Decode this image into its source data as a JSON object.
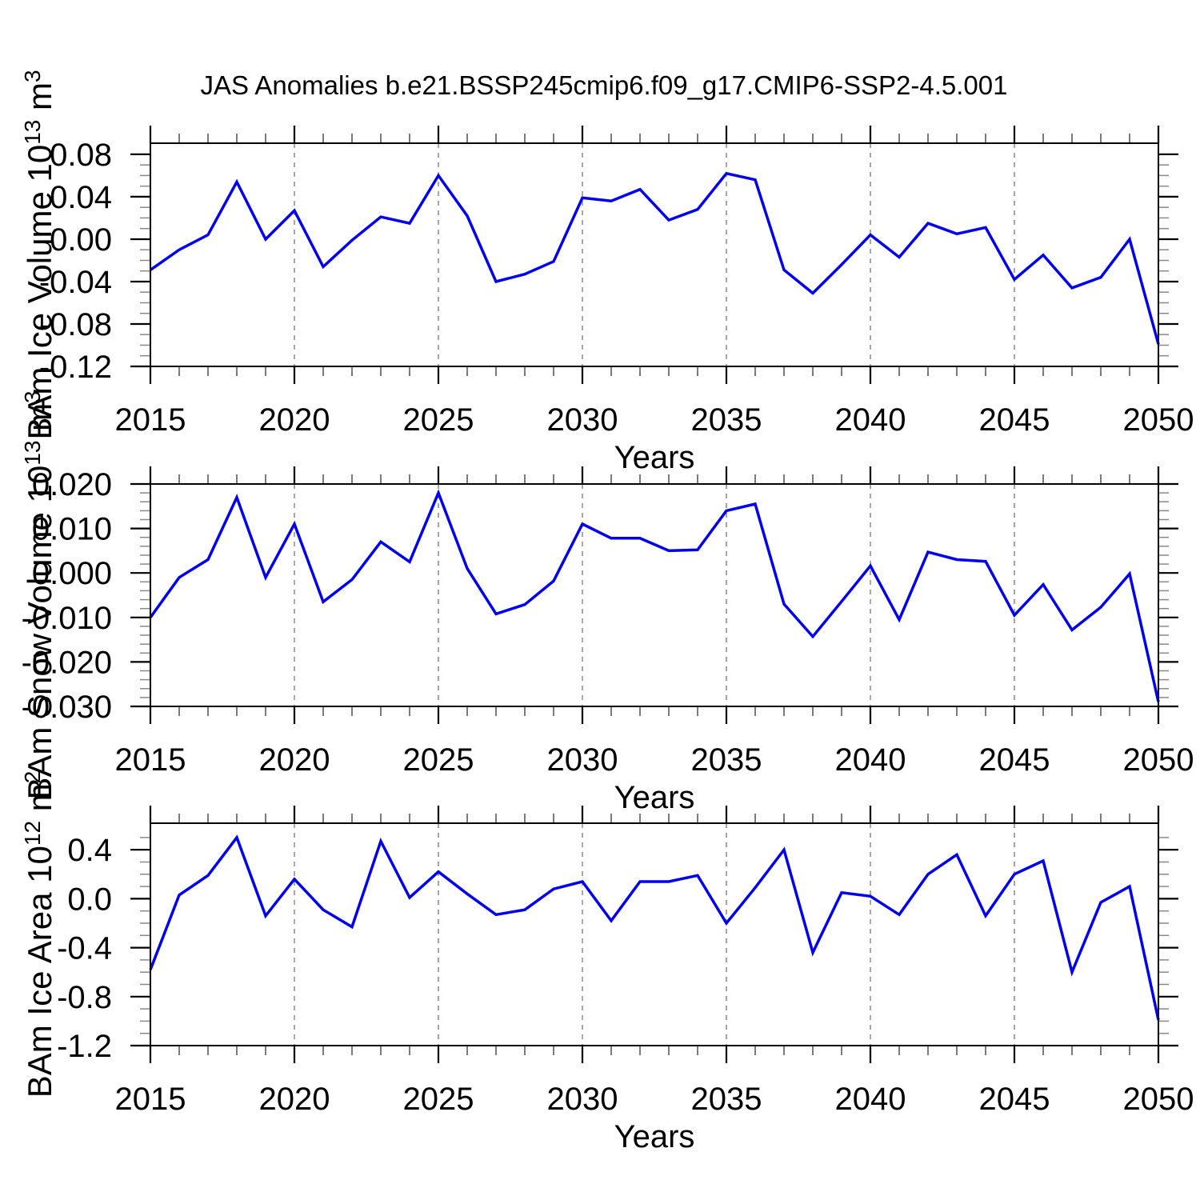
{
  "title": "JAS Anomalies b.e21.BSSP245cmip6.f09_g17.CMIP6-SSP2-4.5.001",
  "x_axis": {
    "label": "Years",
    "start": 2015,
    "end": 2050,
    "years": [
      2015,
      2016,
      2017,
      2018,
      2019,
      2020,
      2021,
      2022,
      2023,
      2024,
      2025,
      2026,
      2027,
      2028,
      2029,
      2030,
      2031,
      2032,
      2033,
      2034,
      2035,
      2036,
      2037,
      2038,
      2039,
      2040,
      2041,
      2042,
      2043,
      2044,
      2045,
      2046,
      2047,
      2048,
      2049,
      2050
    ],
    "major_tick_years": [
      2015,
      2020,
      2025,
      2030,
      2035,
      2040,
      2045,
      2050
    ],
    "tick_labels": [
      "2015",
      "2020",
      "2025",
      "2030",
      "2035",
      "2040",
      "2045",
      "2050"
    ],
    "gridline_years": [
      2020,
      2025,
      2030,
      2035,
      2040,
      2045
    ]
  },
  "style": {
    "line_color": "#0000EE",
    "frame_color": "#000000",
    "grid_color": "#8a8a8a",
    "major_tick_color": "#000000",
    "minor_tick_color": "#888888",
    "text_color": "#000000"
  },
  "chart_data": [
    {
      "type": "line",
      "name": "bam-ice-volume",
      "ylabel_text": "BAm Ice Volume 10^13 m^3",
      "ylabel_parts": [
        {
          "text": "BAm Ice Volume 10",
          "sup": false
        },
        {
          "text": "13",
          "sup": true
        },
        {
          "text": " m",
          "sup": false
        },
        {
          "text": "3",
          "sup": true
        }
      ],
      "xlabel": "Years",
      "ylim": [
        -0.12,
        0.0905
      ],
      "ytick_values": [
        0.08,
        0.04,
        0.0,
        -0.04,
        -0.08,
        -0.12
      ],
      "ytick_labels": [
        "0.08",
        "0.04",
        "0.00",
        "-0.04",
        "-0.08",
        "-0.12"
      ],
      "yminor_step": 0.01,
      "ymajor_step": 0.04,
      "values": [
        -0.029,
        -0.01,
        0.004,
        0.054,
        0.0,
        0.027,
        -0.026,
        -0.001,
        0.021,
        0.015,
        0.06,
        0.022,
        -0.04,
        -0.033,
        -0.021,
        0.039,
        0.036,
        0.047,
        0.018,
        0.028,
        0.062,
        0.056,
        -0.029,
        -0.051,
        -0.024,
        0.004,
        -0.017,
        0.015,
        0.005,
        0.011,
        -0.038,
        -0.015,
        -0.046,
        -0.036,
        0.0,
        -0.099
      ]
    },
    {
      "type": "line",
      "name": "bam-snow-volume",
      "ylabel_text": "BAm Snow Volume 10^13 m^3",
      "ylabel_parts": [
        {
          "text": "BAm Snow Volume 10",
          "sup": false
        },
        {
          "text": "13",
          "sup": true
        },
        {
          "text": " m",
          "sup": false
        },
        {
          "text": "3",
          "sup": true
        }
      ],
      "xlabel": "Years",
      "ylim": [
        -0.03,
        0.02
      ],
      "ytick_values": [
        0.02,
        0.01,
        0.0,
        -0.01,
        -0.02,
        -0.03
      ],
      "ytick_labels": [
        "0.020",
        "0.010",
        "0.000",
        "-0.010",
        "-0.020",
        "-0.030"
      ],
      "yminor_step": 0.002,
      "ymajor_step": 0.01,
      "values": [
        -0.01,
        -0.001,
        0.003,
        0.017,
        -0.001,
        0.011,
        -0.0065,
        -0.0015,
        0.007,
        0.0025,
        0.018,
        0.001,
        -0.0092,
        -0.0071,
        -0.0018,
        0.011,
        0.0078,
        0.0078,
        0.005,
        0.0052,
        0.014,
        0.0155,
        -0.007,
        -0.0143,
        -0.0064,
        0.0016,
        -0.0105,
        0.0047,
        0.003,
        0.0026,
        -0.0095,
        -0.0026,
        -0.0128,
        -0.0077,
        -0.0002,
        -0.029
      ]
    },
    {
      "type": "line",
      "name": "bam-ice-area",
      "ylabel_text": "BAm Ice Area 10^12 m^2",
      "ylabel_parts": [
        {
          "text": "BAm Ice Area 10",
          "sup": false
        },
        {
          "text": "12",
          "sup": true
        },
        {
          "text": " m",
          "sup": false
        },
        {
          "text": "2",
          "sup": true
        }
      ],
      "xlabel": "Years",
      "ylim": [
        -1.2,
        0.617
      ],
      "ytick_values": [
        0.4,
        0.0,
        -0.4,
        -0.8,
        -1.2
      ],
      "ytick_labels": [
        "0.4",
        "0.0",
        "-0.4",
        "-0.8",
        "-1.2"
      ],
      "yminor_step": 0.1,
      "ymajor_step": 0.4,
      "values": [
        -0.58,
        0.03,
        0.19,
        0.5,
        -0.14,
        0.16,
        -0.09,
        -0.23,
        0.47,
        0.01,
        0.22,
        0.04,
        -0.13,
        -0.09,
        0.08,
        0.14,
        -0.18,
        0.14,
        0.14,
        0.19,
        -0.2,
        0.09,
        0.4,
        -0.44,
        0.05,
        0.02,
        -0.13,
        0.2,
        0.36,
        -0.14,
        0.2,
        0.31,
        -0.6,
        -0.03,
        0.1,
        -0.99
      ]
    }
  ]
}
